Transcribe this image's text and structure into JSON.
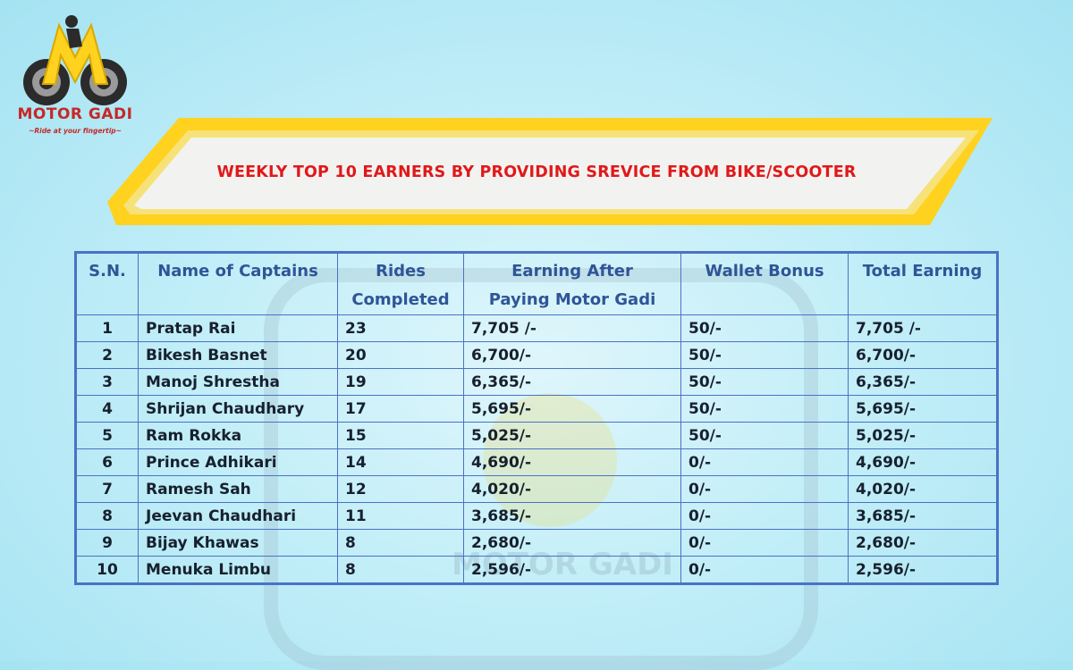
{
  "logo": {
    "brand": "MOTOR GADI",
    "tagline": "~Ride at your fingertip~"
  },
  "banner": {
    "title": "WEEKLY TOP 10 EARNERS BY PROVIDING SREVICE FROM BIKE/SCOOTER"
  },
  "colors": {
    "title_red": "#e0191b",
    "header_blue": "#2f5597",
    "banner_yellow": "#ffd21f",
    "border_blue": "#4a72c4"
  },
  "table": {
    "headers": {
      "sn": "S.N.",
      "name": "Name of Captains",
      "rides_1": "Rides",
      "rides_2": "Completed",
      "earn_1": "Earning After",
      "earn_2": "Paying Motor Gadi",
      "wallet": "Wallet Bonus",
      "total": "Total Earning"
    },
    "rows": [
      {
        "sn": "1",
        "name": "Pratap Rai",
        "rides": "23",
        "earning": "7,705 /-",
        "wallet": "50/-",
        "total": "7,705 /-"
      },
      {
        "sn": "2",
        "name": "Bikesh Basnet",
        "rides": "20",
        "earning": "6,700/-",
        "wallet": "50/-",
        "total": "6,700/-"
      },
      {
        "sn": "3",
        "name": "Manoj Shrestha",
        "rides": "19",
        "earning": "6,365/-",
        "wallet": "50/-",
        "total": "6,365/-"
      },
      {
        "sn": "4",
        "name": "Shrijan Chaudhary",
        "rides": "17",
        "earning": "5,695/-",
        "wallet": "50/-",
        "total": "5,695/-"
      },
      {
        "sn": "5",
        "name": "Ram Rokka",
        "rides": "15",
        "earning": "5,025/-",
        "wallet": "50/-",
        "total": "5,025/-"
      },
      {
        "sn": "6",
        "name": "Prince Adhikari",
        "rides": "14",
        "earning": "4,690/-",
        "wallet": "0/-",
        "total": "4,690/-"
      },
      {
        "sn": "7",
        "name": "Ramesh Sah",
        "rides": "12",
        "earning": "4,020/-",
        "wallet": "0/-",
        "total": "4,020/-"
      },
      {
        "sn": "8",
        "name": "Jeevan Chaudhari",
        "rides": "11",
        "earning": "3,685/-",
        "wallet": "0/-",
        "total": "3,685/-"
      },
      {
        "sn": "9",
        "name": "Bijay Khawas",
        "rides": "8",
        "earning": "2,680/-",
        "wallet": "0/-",
        "total": "2,680/-"
      },
      {
        "sn": "10",
        "name": "Menuka Limbu",
        "rides": "8",
        "earning": "2,596/-",
        "wallet": "0/-",
        "total": "2,596/-"
      }
    ]
  }
}
